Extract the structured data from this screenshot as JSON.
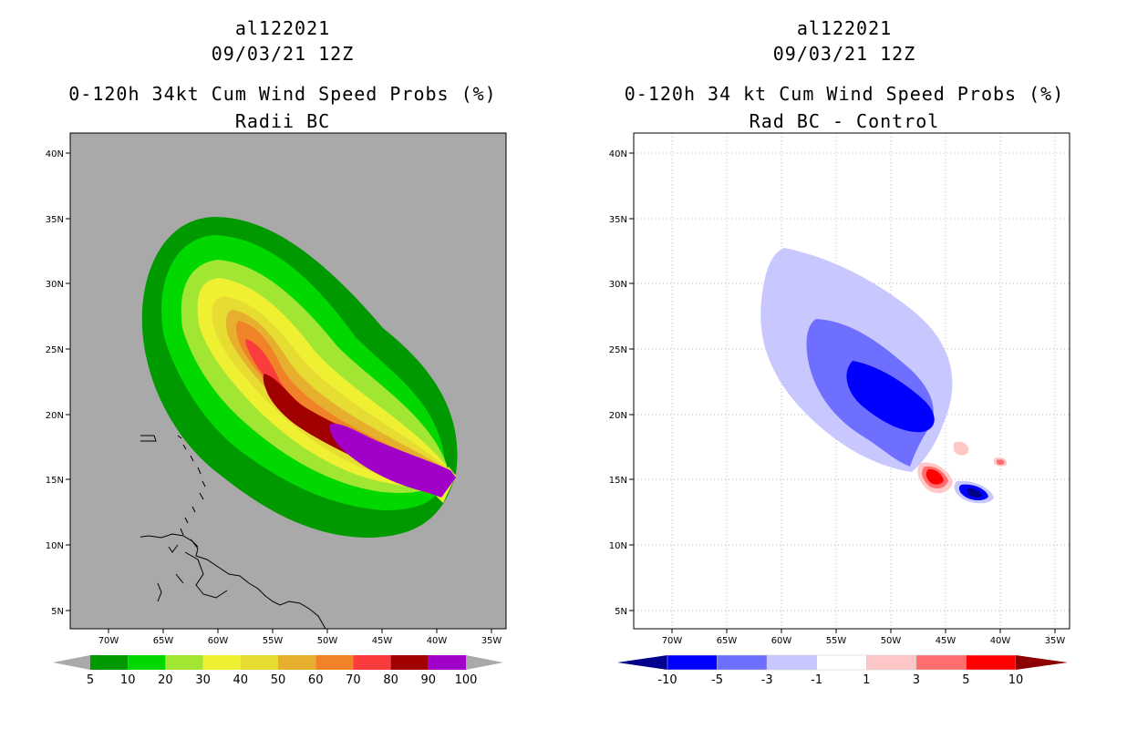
{
  "left_panel": {
    "storm_id": "al122021",
    "datetime": "09/03/21 12Z",
    "title": "0-120h 34kt Cum Wind Speed Probs (%)",
    "subtitle": "Radii BC",
    "lat_labels": [
      "40N",
      "35N",
      "30N",
      "25N",
      "20N",
      "15N",
      "10N",
      "5N"
    ],
    "lon_labels": [
      "70W",
      "65W",
      "60W",
      "55W",
      "50W",
      "45W",
      "40W",
      "35W"
    ],
    "colorbar": {
      "labels": [
        "5",
        "10",
        "20",
        "30",
        "40",
        "50",
        "60",
        "70",
        "80",
        "90",
        "100"
      ],
      "colors": [
        "#009a00",
        "#00d800",
        "#a0e632",
        "#f0f032",
        "#e6dc32",
        "#e6af2d",
        "#f08228",
        "#fa3c3c",
        "#a00000",
        "#a000c8"
      ]
    }
  },
  "right_panel": {
    "storm_id": "al122021",
    "datetime": "09/03/21 12Z",
    "title": "0-120h 34 kt Cum Wind Speed Probs (%)",
    "subtitle": "Rad BC - Control",
    "lat_labels": [
      "40N",
      "35N",
      "30N",
      "25N",
      "20N",
      "15N",
      "10N",
      "5N"
    ],
    "lon_labels": [
      "70W",
      "65W",
      "60W",
      "55W",
      "50W",
      "45W",
      "40W",
      "35W"
    ],
    "colorbar": {
      "labels": [
        "-10",
        "-5",
        "-3",
        "-1",
        "1",
        "3",
        "5",
        "10"
      ],
      "colors": [
        "#00008c",
        "#0000ff",
        "#6e6eff",
        "#c8c8ff",
        "#ffffff",
        "#ffc8c8",
        "#ff6e6e",
        "#ff0000",
        "#8c0000"
      ]
    }
  }
}
